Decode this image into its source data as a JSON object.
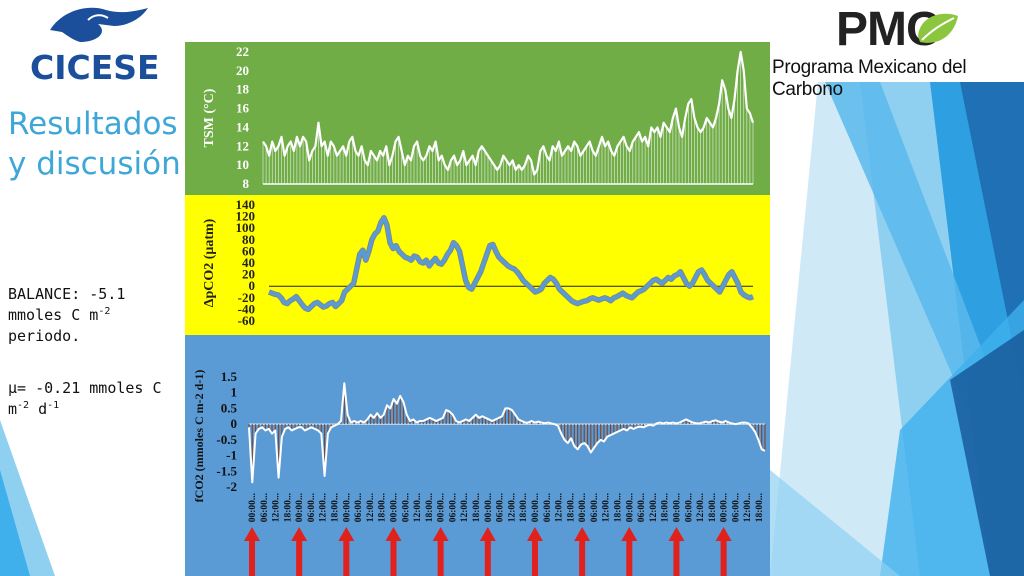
{
  "header": {
    "cicese_logo": "CICESE",
    "pmc_logo": "PMC",
    "pmc_name": "Programa Mexicano del Carbono"
  },
  "slide": {
    "title_line1": "Resultados",
    "title_line2": "y discusión"
  },
  "notes": {
    "balance_line1": "BALANCE: -5.1",
    "balance_line2_pre": "mmoles C m",
    "balance_line2_sup": "-2",
    "balance_line3": "periodo.",
    "mu_line1": "μ= -0.21 mmoles C",
    "mu_line2_pre": "m",
    "mu_line2_sup1": "-2",
    "mu_line2_mid": " d",
    "mu_line2_sup2": "-1"
  },
  "colors": {
    "tsm_bg": "#70ad47",
    "dpco2_bg": "#ffff00",
    "fco2_bg": "#5b9bd5",
    "dpco2_line": "#5b9bd5",
    "arrow": "#e0211c",
    "title": "#3ea7d8"
  },
  "chart_data": [
    {
      "type": "line",
      "ylabel": "TSM (°C)",
      "ylim": [
        8,
        22
      ],
      "yticks": [
        "22",
        "20",
        "18",
        "16",
        "14",
        "12",
        "10",
        "8"
      ],
      "series": [
        {
          "values": [
            12.5,
            12,
            11,
            12.5,
            11.5,
            12,
            13,
            11,
            12,
            12.5,
            11.5,
            13,
            12,
            13,
            12.5,
            10.5,
            11.5,
            12,
            14.5,
            12,
            12.5,
            11,
            12.5,
            12,
            11,
            11.5,
            12,
            11,
            12.5,
            13,
            11.5,
            11,
            12,
            10.5,
            10,
            11.5,
            11,
            10.5,
            11.5,
            11,
            12,
            10,
            11,
            12.5,
            13,
            11.5,
            10,
            11,
            10.5,
            12,
            12.5,
            11,
            10.5,
            11,
            12,
            11.5,
            12.5,
            10.5,
            11,
            10,
            9.5,
            10.5,
            11,
            10,
            10.5,
            11.5,
            10,
            10.5,
            11,
            10,
            11.5,
            12,
            11.5,
            11,
            10.5,
            10,
            9.5,
            10,
            11,
            10.5,
            10,
            10.5,
            9.5,
            10,
            9.5,
            10,
            11,
            10.5,
            9,
            9.5,
            11.5,
            12,
            11,
            10.5,
            12,
            11.5,
            12.5,
            11,
            11.5,
            12,
            11.5,
            12.5,
            12,
            11,
            11.5,
            12,
            12.5,
            11.5,
            11,
            12,
            13,
            12,
            12.5,
            11.5,
            11,
            12,
            12.5,
            13,
            12,
            11.5,
            12.5,
            13,
            13.5,
            12.5,
            13,
            12,
            14,
            13.5,
            14,
            13,
            14.5,
            14,
            13.5,
            15,
            16,
            14,
            13,
            15,
            16.5,
            17,
            15,
            14,
            13.5,
            14,
            15,
            14.5,
            14,
            15,
            16.5,
            19,
            18,
            16,
            15,
            17,
            20,
            22,
            20,
            16,
            15.5,
            14.5
          ]
        }
      ]
    },
    {
      "type": "line",
      "ylabel": "ΔpCO2 (μatm)",
      "ylim": [
        -60,
        140
      ],
      "yticks": [
        "140",
        "120",
        "100",
        "80",
        "60",
        "40",
        "20",
        "0",
        "-20",
        "-40",
        "-60"
      ],
      "series": [
        {
          "values": [
            -10,
            -12,
            -14,
            -15,
            -20,
            -28,
            -30,
            -25,
            -22,
            -18,
            -25,
            -32,
            -38,
            -40,
            -35,
            -30,
            -28,
            -32,
            -36,
            -34,
            -30,
            -28,
            -35,
            -30,
            -25,
            -10,
            -5,
            0,
            5,
            30,
            55,
            62,
            45,
            60,
            80,
            90,
            95,
            110,
            118,
            105,
            75,
            65,
            70,
            60,
            55,
            50,
            48,
            45,
            52,
            50,
            42,
            40,
            45,
            35,
            42,
            48,
            40,
            38,
            45,
            55,
            62,
            75,
            70,
            60,
            35,
            10,
            -2,
            -5,
            5,
            15,
            25,
            40,
            55,
            70,
            72,
            60,
            50,
            45,
            40,
            35,
            32,
            30,
            25,
            18,
            10,
            5,
            0,
            -5,
            -10,
            -8,
            -5,
            5,
            10,
            15,
            12,
            5,
            -5,
            -10,
            -15,
            -20,
            -25,
            -28,
            -30,
            -28,
            -26,
            -25,
            -22,
            -20,
            -22,
            -24,
            -22,
            -20,
            -22,
            -25,
            -20,
            -18,
            -15,
            -12,
            -16,
            -18,
            -20,
            -15,
            -10,
            -8,
            -5,
            0,
            5,
            10,
            12,
            8,
            5,
            10,
            15,
            12,
            18,
            20,
            25,
            15,
            5,
            0,
            5,
            15,
            25,
            28,
            20,
            10,
            5,
            0,
            -5,
            -10,
            0,
            10,
            20,
            25,
            15,
            5,
            -10,
            -15,
            -18,
            -20,
            -18
          ]
        }
      ]
    },
    {
      "type": "area",
      "ylabel": "fCO2 (mmoles C m-2 d-1)",
      "ylim": [
        -2,
        1.5
      ],
      "yticks": [
        "1.5",
        "1",
        "0.5",
        "0",
        "-0.5",
        "-1",
        "-1.5",
        "-2"
      ],
      "series": [
        {
          "values": [
            -0.1,
            -1.85,
            -0.3,
            -0.15,
            -0.1,
            -0.2,
            -0.15,
            -0.3,
            -0.2,
            -1.7,
            -0.4,
            -0.15,
            -0.1,
            -0.2,
            -0.15,
            -0.1,
            -0.1,
            -0.2,
            -0.15,
            -0.1,
            -0.15,
            -0.2,
            -0.3,
            -1.65,
            -0.3,
            -0.1,
            -0.05,
            0,
            0.1,
            1.3,
            0.3,
            0.05,
            0.1,
            0.05,
            0.1,
            0.05,
            0.15,
            0.3,
            0.2,
            0.35,
            0.2,
            0.3,
            0.6,
            0.5,
            0.8,
            0.65,
            0.9,
            0.7,
            0.3,
            0.1,
            0.15,
            0.05,
            0.1,
            0.1,
            0.15,
            0.2,
            0.15,
            0.1,
            0.15,
            0.2,
            0.45,
            0.4,
            0.3,
            0.1,
            0.05,
            0.1,
            0.15,
            0.1,
            0.2,
            0.3,
            0.2,
            0.25,
            0.2,
            0.15,
            0.1,
            0.15,
            0.2,
            0.25,
            0.5,
            0.5,
            0.45,
            0.3,
            0.15,
            0.1,
            0.05,
            0.05,
            0.1,
            0.05,
            0.08,
            0.05,
            0.03,
            0.05,
            0.02,
            0,
            -0.05,
            -0.3,
            -0.5,
            -0.6,
            -0.45,
            -0.7,
            -0.8,
            -0.65,
            -0.6,
            -0.7,
            -0.9,
            -0.75,
            -0.6,
            -0.5,
            -0.55,
            -0.4,
            -0.35,
            -0.3,
            -0.25,
            -0.2,
            -0.15,
            -0.2,
            -0.1,
            -0.15,
            -0.1,
            -0.08,
            -0.1,
            -0.05,
            -0.02,
            -0.05,
            0.02,
            0.05,
            0.02,
            0.05,
            0.03,
            0.05,
            0.02,
            0.05,
            0.1,
            0.15,
            0.1,
            0.05,
            0.03,
            0.02,
            0.05,
            0.08,
            0.05,
            0.1,
            0.12,
            0.08,
            0.05,
            0.1,
            0.05,
            0.02,
            0,
            0.02,
            0.05,
            0.05,
            0.02,
            -0.1,
            -0.25,
            -0.5,
            -0.8,
            -0.85
          ]
        }
      ],
      "xticks": [
        "00:00...",
        "06:00...",
        "12:00...",
        "18:00...",
        "00:00...",
        "06:00...",
        "12:00...",
        "18:00...",
        "00:00...",
        "06:00...",
        "12:00...",
        "18:00...",
        "00:00...",
        "06:00...",
        "12:00...",
        "18:00...",
        "00:00...",
        "06:00...",
        "12:00...",
        "18:00...",
        "00:00...",
        "06:00...",
        "12:00...",
        "18:00...",
        "00:00...",
        "06:00...",
        "12:00...",
        "18:00...",
        "00:00...",
        "06:00...",
        "12:00...",
        "18:00...",
        "00:00...",
        "06:00...",
        "12:00...",
        "18:00...",
        "00:00...",
        "06:00...",
        "12:00...",
        "18:00...",
        "00:00...",
        "06:00...",
        "12:00...",
        "18:00..."
      ]
    }
  ]
}
